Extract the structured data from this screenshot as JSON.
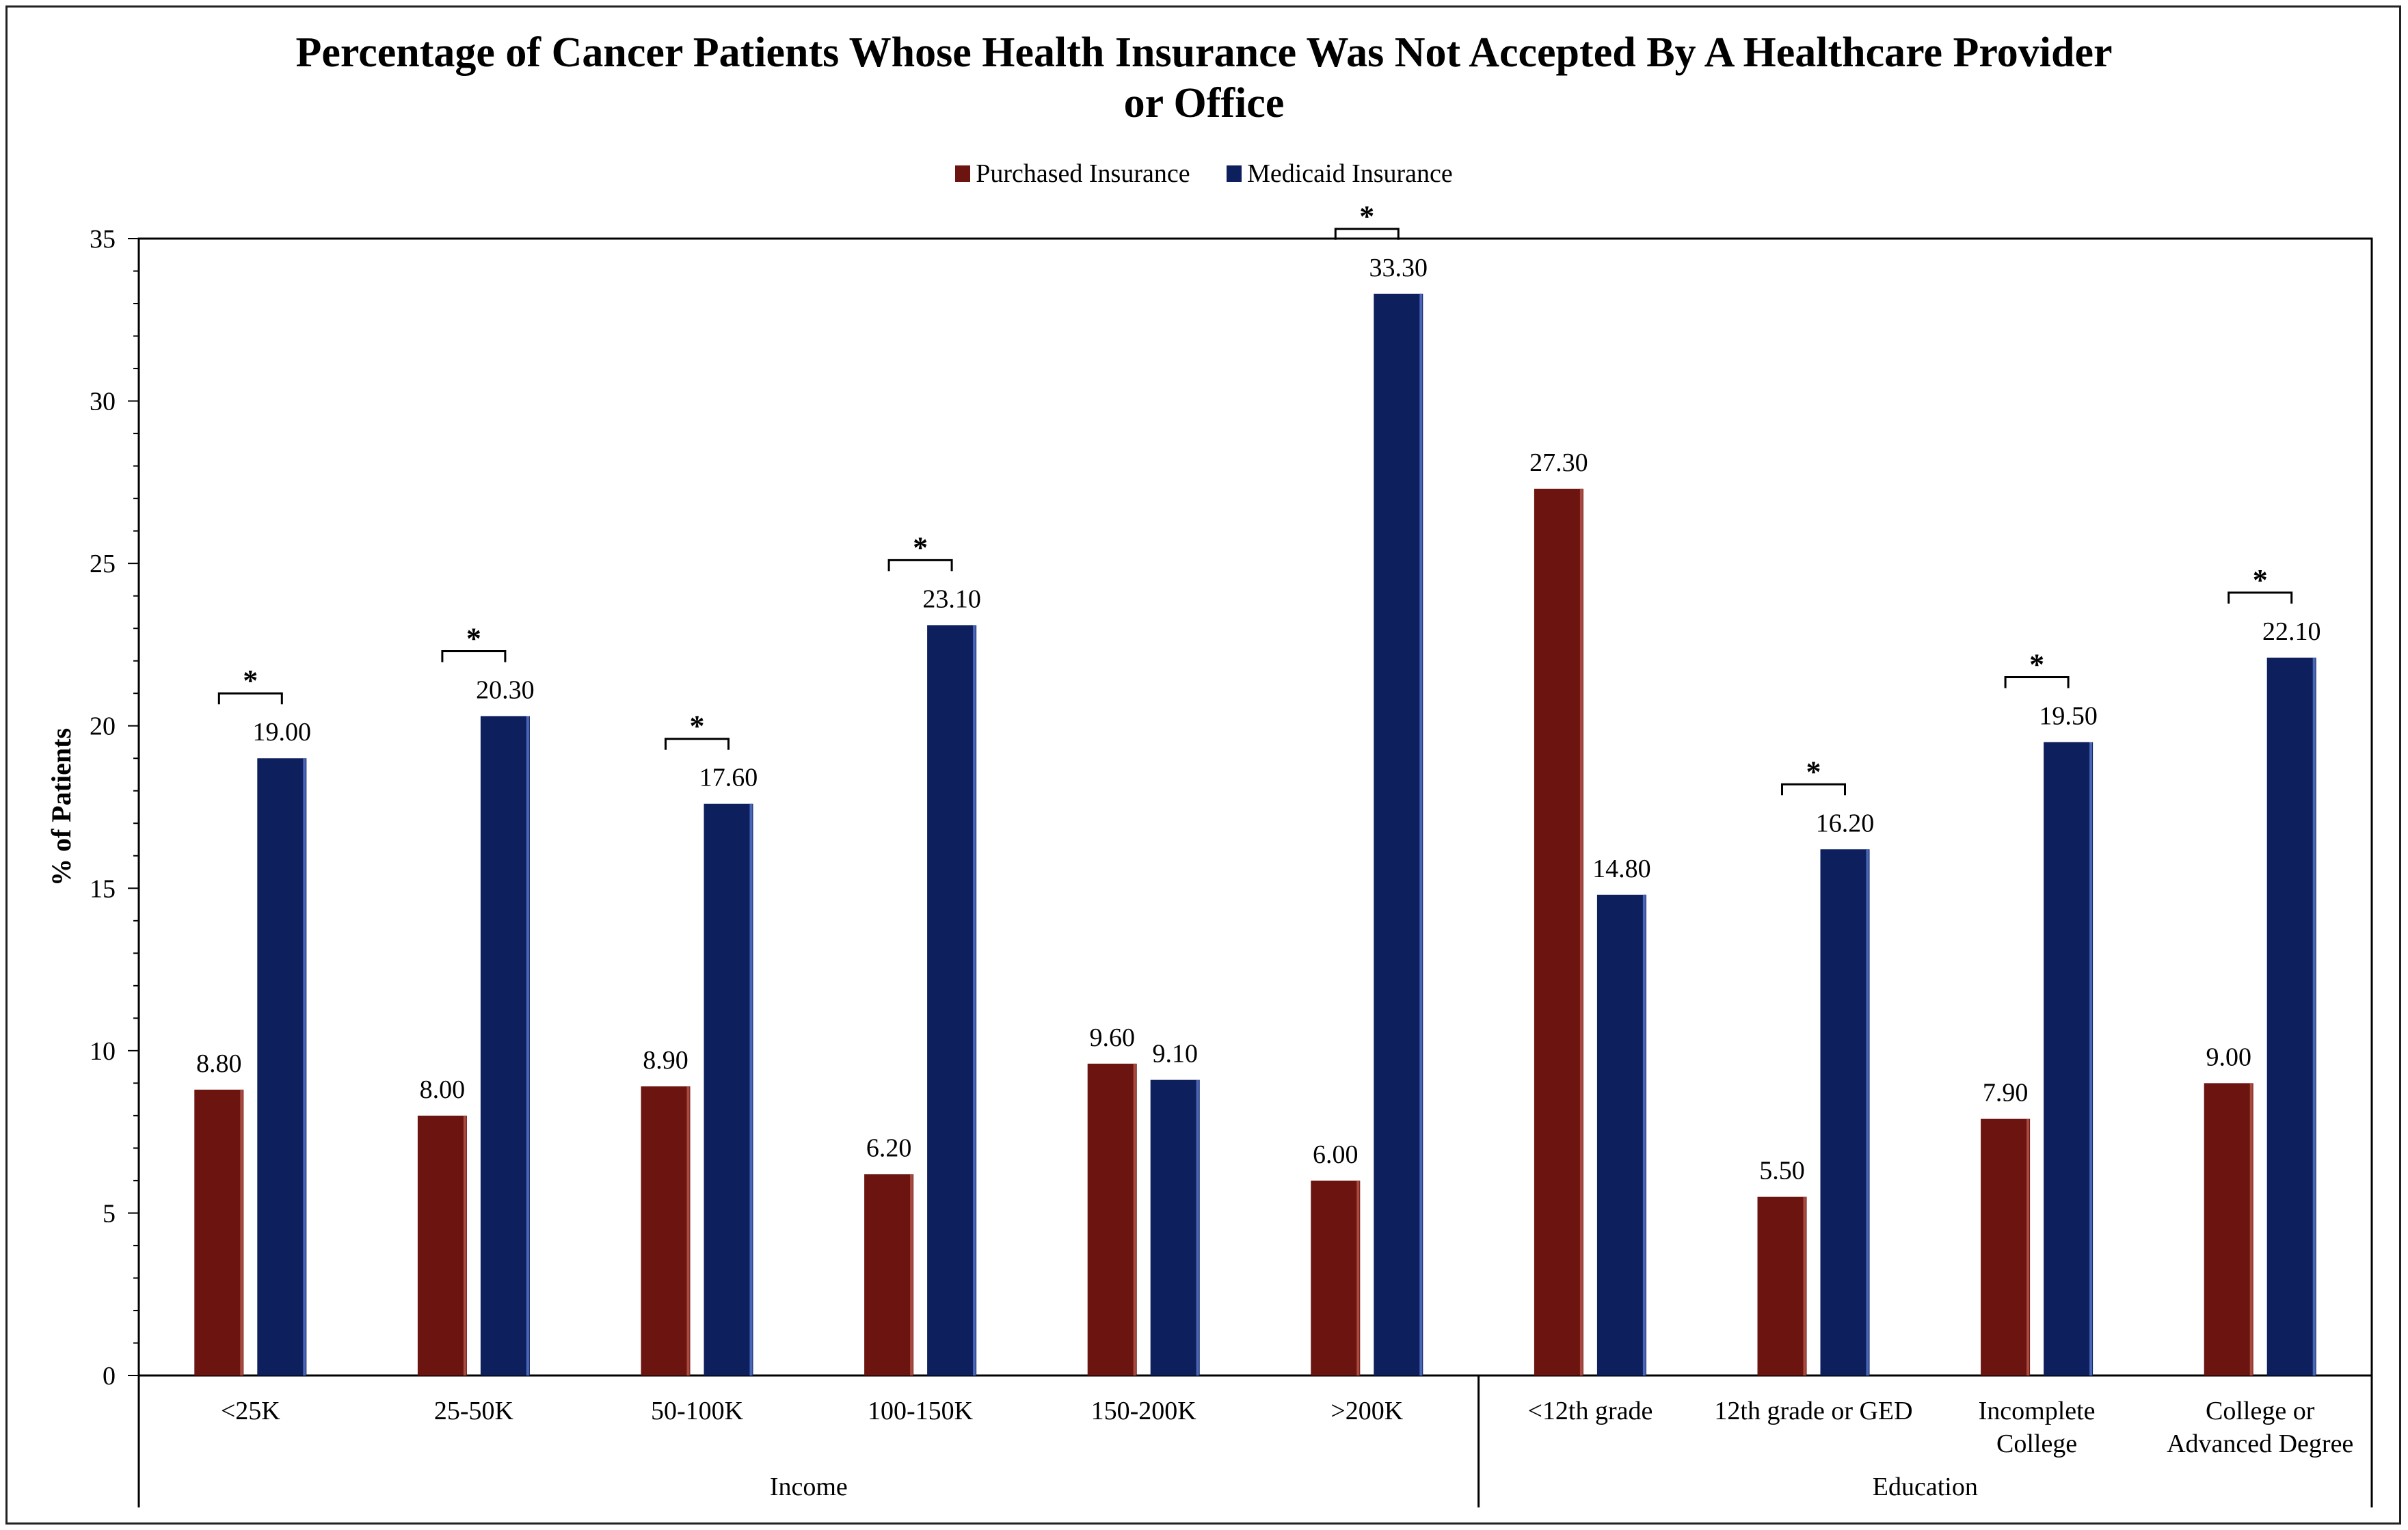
{
  "chart_data": {
    "type": "bar",
    "title_lines": [
      "Percentage of Cancer Patients Whose Health Insurance Was Not Accepted By A Healthcare Provider",
      "or Office"
    ],
    "ylabel": "% of Patients",
    "ylim": [
      0,
      35
    ],
    "yticks": [
      0,
      5,
      10,
      15,
      20,
      25,
      30,
      35
    ],
    "legend_position": "top-center",
    "categories": [
      "<25K",
      "25-50K",
      "50-100K",
      "100-150K",
      "150-200K",
      ">200K",
      "<12th grade",
      "12th grade or GED",
      "Incomplete College",
      "College or Advanced Degree"
    ],
    "category_label_lines": [
      [
        "<25K"
      ],
      [
        "25-50K"
      ],
      [
        "50-100K"
      ],
      [
        "100-150K"
      ],
      [
        "150-200K"
      ],
      [
        ">200K"
      ],
      [
        "<12th grade"
      ],
      [
        "12th grade or GED"
      ],
      [
        "Incomplete",
        "College"
      ],
      [
        "College or",
        "Advanced Degree"
      ]
    ],
    "groups": [
      {
        "name": "Income",
        "start": 0,
        "end": 5
      },
      {
        "name": "Education",
        "start": 6,
        "end": 9
      }
    ],
    "series": [
      {
        "name": "Purchased Insurance",
        "color": "#6b1410",
        "values": [
          8.8,
          8.0,
          8.9,
          6.2,
          9.6,
          6.0,
          27.3,
          5.5,
          7.9,
          9.0
        ]
      },
      {
        "name": "Medicaid Insurance",
        "color": "#0d1f5c",
        "values": [
          19.0,
          20.3,
          17.6,
          23.1,
          9.1,
          33.3,
          14.8,
          16.2,
          19.5,
          22.1
        ]
      }
    ],
    "value_labels": [
      [
        "8.80",
        "8.00",
        "8.90",
        "6.20",
        "9.60",
        "6.00",
        "27.30",
        "5.50",
        "7.90",
        "9.00"
      ],
      [
        "19.00",
        "20.30",
        "17.60",
        "23.10",
        "9.10",
        "33.30",
        "14.80",
        "16.20",
        "19.50",
        "22.10"
      ]
    ],
    "significance_marker": "*",
    "significant": [
      true,
      true,
      true,
      true,
      false,
      true,
      false,
      true,
      true,
      true
    ]
  }
}
